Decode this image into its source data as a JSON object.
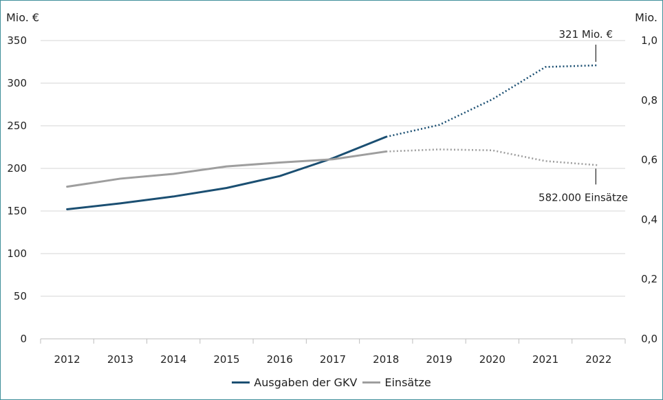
{
  "chart_data": {
    "type": "line",
    "categories": [
      "2012",
      "2013",
      "2014",
      "2015",
      "2016",
      "2017",
      "2018",
      "2019",
      "2020",
      "2021",
      "2022"
    ],
    "left_axis": {
      "unit_label": "Mio. €",
      "ylim": [
        0,
        350
      ],
      "ticks": [
        "0",
        "50",
        "100",
        "150",
        "200",
        "250",
        "300",
        "350"
      ]
    },
    "right_axis": {
      "unit_label": "Mio.",
      "ylim": [
        0,
        1.0
      ],
      "ticks": [
        "0,0",
        "0,2",
        "0,4",
        "0,6",
        "0,8",
        "1,0"
      ]
    },
    "series": [
      {
        "name": "Ausgaben der GKV",
        "axis": "left",
        "color": "#1b4f72",
        "solid_until_index": 6,
        "values": [
          152,
          159,
          167,
          177,
          191,
          212,
          237,
          251,
          281,
          319,
          321
        ]
      },
      {
        "name": "Einsätze",
        "axis": "right",
        "color": "#9e9e9e",
        "solid_until_index": 6,
        "values": [
          0.51,
          0.537,
          0.553,
          0.578,
          0.591,
          0.602,
          0.628,
          0.635,
          0.632,
          0.596,
          0.582
        ]
      }
    ],
    "annotations": [
      {
        "text": "321 Mio. €",
        "series_index": 0,
        "point_index": 10,
        "position": "above"
      },
      {
        "text": "582.000 Einsätze",
        "series_index": 1,
        "point_index": 10,
        "position": "below"
      }
    ],
    "grid": true,
    "legend_position": "bottom-center"
  }
}
